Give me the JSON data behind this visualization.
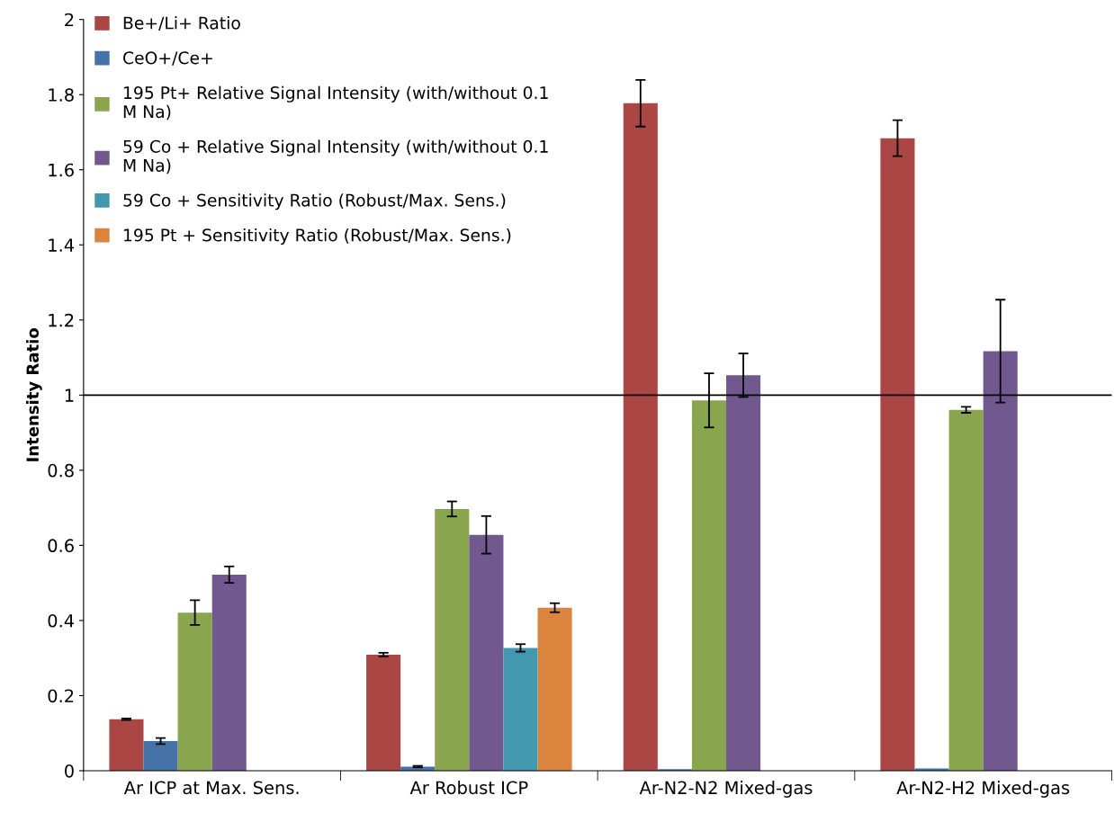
{
  "chart_data": {
    "type": "bar",
    "ylabel": "Intensity Ratio",
    "categories": [
      "Ar ICP at Max. Sens.",
      "Ar Robust ICP",
      "Ar-N2-N2 Mixed-gas",
      "Ar-N2-H2 Mixed-gas"
    ],
    "series": [
      {
        "name": "Be+/Li+ Ratio",
        "color": "#aa4643",
        "values": [
          0.137,
          0.309,
          1.777,
          1.684
        ],
        "errors": [
          0.002,
          0.005,
          0.062,
          0.048
        ]
      },
      {
        "name": "CeO+/Ce+",
        "color": "#4572a7",
        "values": [
          0.079,
          0.011,
          0.004,
          0.006
        ],
        "errors": [
          0.008,
          0.002,
          null,
          null
        ]
      },
      {
        "name": "195 Pt+ Relative Signal Intensity (with/without 0.1\nM Na)",
        "color": "#89a54e",
        "values": [
          0.421,
          0.697,
          0.986,
          0.961
        ],
        "errors": [
          0.033,
          0.02,
          0.072,
          0.008
        ]
      },
      {
        "name": "59 Co + Relative Signal Intensity (with/without 0.1\nM Na)",
        "color": "#71588f",
        "values": [
          0.522,
          0.628,
          1.053,
          1.117
        ],
        "errors": [
          0.022,
          0.05,
          0.058,
          0.137
        ]
      },
      {
        "name": "59 Co + Sensitivity Ratio (Robust/Max. Sens.)",
        "color": "#4198af",
        "values": [
          null,
          0.327,
          null,
          null
        ],
        "errors": [
          null,
          0.01,
          null,
          null
        ]
      },
      {
        "name": "195 Pt + Sensitivity Ratio (Robust/Max. Sens.)",
        "color": "#db843d",
        "values": [
          null,
          0.434,
          null,
          null
        ],
        "errors": [
          null,
          0.012,
          null,
          null
        ]
      }
    ],
    "ylim": [
      0,
      2
    ],
    "yticks": [
      0,
      0.2,
      0.4,
      0.6,
      0.8,
      1,
      1.2,
      1.4,
      1.6,
      1.8,
      2
    ],
    "ref_lines": [
      {
        "axis": "y",
        "value": 1,
        "color": "#000000"
      }
    ],
    "grid": false,
    "legend": "top left"
  }
}
